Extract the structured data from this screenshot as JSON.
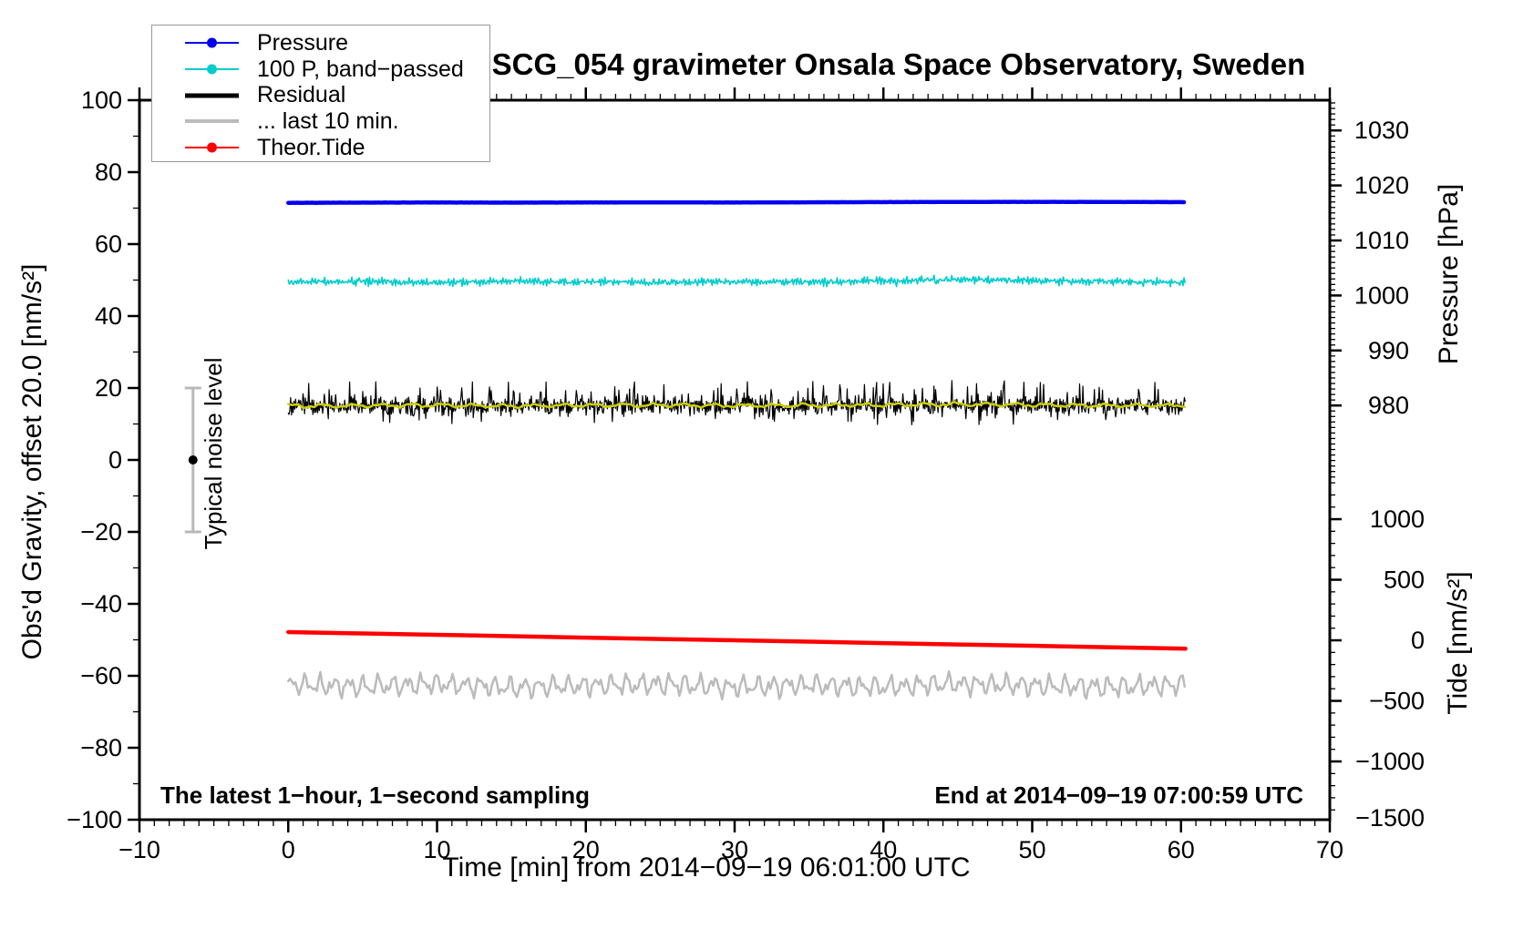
{
  "title": "SCG_054 gravimeter Onsala Space Observatory, Sweden",
  "legend": {
    "items": [
      {
        "label": "Pressure",
        "color": "#0000EE",
        "marker": true,
        "sample_width": 2
      },
      {
        "label": "100 P, band−passed",
        "color": "#00CCCC",
        "marker": true,
        "sample_width": 2
      },
      {
        "label": "Residual",
        "color": "#000000",
        "marker": false,
        "sample_width": 5
      },
      {
        "label": "... last 10 min.",
        "color": "#BBBBBB",
        "marker": false,
        "sample_width": 4
      },
      {
        "label": "Theor.Tide",
        "color": "#FF0000",
        "marker": true,
        "sample_width": 2
      }
    ]
  },
  "annotations": {
    "noise_level_label": "Typical noise level",
    "bottom_left": "The latest 1−hour, 1−second sampling",
    "bottom_right": "End at 2014−09−19 07:00:59 UTC"
  },
  "chart_data": {
    "type": "line",
    "title": "SCG_054 gravimeter Onsala Space Observatory, Sweden",
    "axes": {
      "x": {
        "title": "Time [min] from 2014−09−19 06:01:00 UTC",
        "left_value": -10,
        "span": 80,
        "major_step": 10,
        "minor_step": 1,
        "labels": [
          -10,
          0,
          10,
          20,
          30,
          40,
          50,
          60,
          70
        ]
      },
      "left": {
        "title": "Obs'd Gravity, offset 20.0 [nm/s²]",
        "top_value": 100,
        "span": 200,
        "major_step": 20,
        "minor_step": 10,
        "labels": [
          100,
          80,
          60,
          40,
          20,
          0,
          -20,
          -40,
          -60,
          -80,
          -100
        ]
      },
      "pressure": {
        "title": "Pressure [hPa]",
        "top_value": 1035.5,
        "span": 130.8,
        "major_step": 10,
        "minor_step": 1,
        "tick_min": 967,
        "tick_max": 1035,
        "labels": [
          1030,
          1020,
          1010,
          1000,
          990,
          980
        ]
      },
      "tide": {
        "title": "Tide [nm/s²]",
        "top_value": 4459,
        "span": 5940,
        "major_step": 500,
        "minor_step": 100,
        "tick_min": -1400,
        "tick_max": 1300,
        "labels": [
          1000,
          500,
          0,
          -500,
          -1000,
          -1500
        ]
      }
    },
    "x_minutes": [
      0,
      5,
      10,
      15,
      20,
      25,
      30,
      35,
      40,
      45,
      50,
      55,
      60
    ],
    "series": [
      {
        "name": "Pressure",
        "axis": "pressure",
        "gen": "flat",
        "color": "#0000EE",
        "width": 4.5,
        "values": [
          1016.85,
          1016.88,
          1016.9,
          1016.88,
          1016.9,
          1016.92,
          1016.9,
          1016.94,
          1016.97,
          1017.0,
          1017.02,
          1017.0,
          1016.97
        ]
      },
      {
        "name": "100 P, band-passed",
        "axis": "left",
        "gen": "bandpass",
        "color": "#00CCCC",
        "width": 1.6,
        "noise_amp": 1.0,
        "values": [
          49.4,
          49.6,
          49.3,
          49.7,
          49.5,
          49.4,
          49.6,
          49.5,
          49.8,
          50.1,
          49.9,
          49.6,
          49.5
        ]
      },
      {
        "name": "Residual",
        "axis": "left",
        "gen": "spiky",
        "color": "#000000",
        "width": 1.2,
        "noise_amp": 3.0,
        "values": [
          15.0,
          15.1,
          15.2,
          15.0,
          15.2,
          15.3,
          15.1,
          15.2,
          15.3,
          15.5,
          15.3,
          15.1,
          15.2
        ]
      },
      {
        "name": "Residual smoothed",
        "axis": "left",
        "gen": "smooth",
        "color": "#CDCD00",
        "width": 2.5,
        "noise_amp": 0.4,
        "values": [
          15.0,
          15.1,
          15.2,
          15.0,
          15.2,
          15.3,
          15.1,
          15.2,
          15.3,
          15.5,
          15.3,
          15.1,
          15.2
        ]
      },
      {
        "name": "Residual, last 10 min",
        "axis": "left",
        "gen": "wave",
        "color": "#BBBBBB",
        "width": 2.5,
        "noise_amp": 3.6,
        "values": [
          -62.4,
          -63.0,
          -62.2,
          -63.3,
          -62.7,
          -62.3,
          -63.1,
          -62.6,
          -63.0,
          -62.2,
          -62.8,
          -63.1,
          -62.6
        ]
      },
      {
        "name": "Theor.Tide",
        "axis": "tide",
        "gen": "line",
        "color": "#FF0000",
        "width": 4.5,
        "values": [
          68,
          57,
          45,
          34,
          22,
          11,
          0,
          -11,
          -23,
          -34,
          -45,
          -57,
          -68
        ]
      }
    ],
    "noise_marker": {
      "x_min": -6.4,
      "center": 0,
      "low": -20,
      "high": 20,
      "color": "#B8B8B8"
    }
  }
}
